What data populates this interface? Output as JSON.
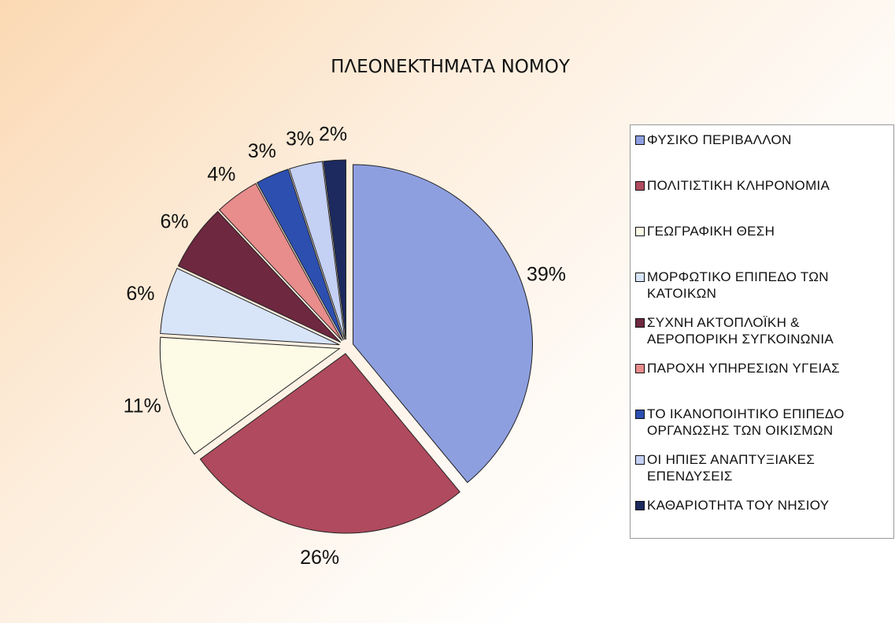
{
  "chart_data": {
    "type": "pie",
    "title": "ΠΛΕΟΝΕΚΤΗΜΑΤΑ ΝΟΜΟΥ",
    "categories": [
      "ΦΥΣΙΚΟ ΠΕΡΙΒΑΛΛΟΝ",
      "ΠΟΛΙΤΙΣΤΙΚΗ ΚΛΗΡΟΝΟΜΙΑ",
      "ΓΕΩΓΡΑΦΙΚΗ ΘΕΣΗ",
      "ΜΟΡΦΩΤΙΚΟ ΕΠΙΠΕΔΟ ΤΩΝ ΚΑΤΟΙΚΩΝ",
      "ΣΥΧΝΗ ΑΚΤΟΠΛΟΪΚΗ & ΑΕΡΟΠΟΡΙΚΗ ΣΥΓΚΟΙΝΩΝΙΑ",
      "ΠΑΡΟΧΗ ΥΠΗΡΕΣΙΩΝ ΥΓΕΙΑΣ",
      "ΤΟ ΙΚΑΝΟΠΟΙΗΤΙΚΟ ΕΠΙΠΕΔΟ ΟΡΓΑΝΩΣΗΣ ΤΩΝ ΟΙΚΙΣΜΩΝ",
      "ΟΙ ΗΠΙΕΣ ΑΝΑΠΤΥΞΙΑΚΕΣ ΕΠΕΝΔΥΣΕΙΣ",
      "ΚΑΘΑΡΙΟΤΗΤΑ ΤΟΥ ΝΗΣΙΟΥ"
    ],
    "values": [
      39,
      26,
      11,
      6,
      6,
      4,
      3,
      3,
      2
    ],
    "value_labels": [
      "39%",
      "26%",
      "11%",
      "6%",
      "6%",
      "4%",
      "3%",
      "3%",
      "2%"
    ],
    "colors": [
      "#8e9fe0",
      "#b04a5e",
      "#fdfbe6",
      "#d8e4f8",
      "#6e2840",
      "#e88c8c",
      "#2c4fb0",
      "#c4d0f4",
      "#1c2a60"
    ],
    "legend": "right"
  }
}
